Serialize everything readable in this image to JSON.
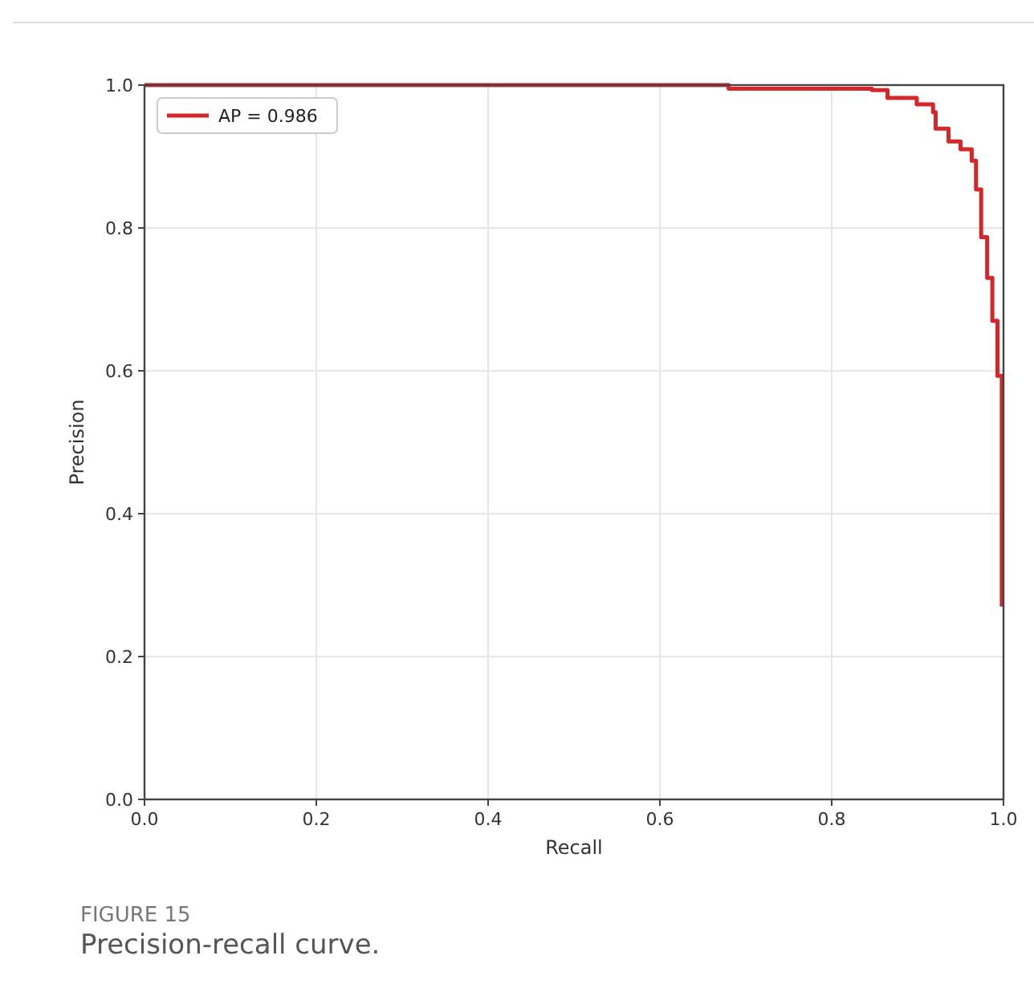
{
  "chart_data": {
    "type": "step",
    "xlabel": "Recall",
    "ylabel": "Precision",
    "annotations": [
      "FIGURE 15",
      "Precision-recall curve."
    ],
    "x": [
      0,
      0.68,
      0.847,
      0.865,
      0.899,
      0.918,
      0.921,
      0.936,
      0.95,
      0.963,
      0.968,
      0.974,
      0.981,
      0.987,
      0.993,
      0.998
    ],
    "series": [
      {
        "name": "AP = 0.986",
        "color": "#d62728",
        "values": [
          1,
          0.995,
          0.993,
          0.982,
          0.973,
          0.962,
          0.939,
          0.921,
          0.91,
          0.894,
          0.854,
          0.787,
          0.73,
          0.67,
          0.593,
          0.27
        ]
      }
    ],
    "xlim": [
      0,
      1
    ],
    "ylim": [
      0,
      1
    ],
    "xticks": [
      {
        "value": 0,
        "label": "0.0"
      },
      0.2,
      0.4,
      0.6,
      0.8,
      {
        "value": 1,
        "label": "1.0"
      }
    ],
    "yticks": [
      {
        "value": 0,
        "label": "0.0"
      },
      0.2,
      0.4,
      0.6,
      0.8,
      {
        "value": 1,
        "label": "1.0"
      }
    ],
    "grid": true,
    "legend": "top left",
    "line_style": "solid",
    "marker": "none"
  }
}
